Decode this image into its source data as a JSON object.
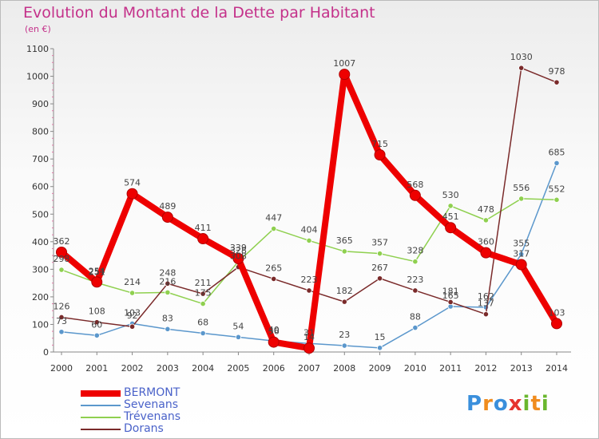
{
  "title": "Evolution du Montant de la Dette par Habitant",
  "subtitle": "(en €)",
  "logo": {
    "text": "Proxiti",
    "letter_colors": [
      "#3a8fdc",
      "#f08c1e",
      "#3a8fdc",
      "#e6342f",
      "#6ab72e",
      "#f08c1e",
      "#6ab72e"
    ]
  },
  "chart_data": {
    "type": "line",
    "title": "Evolution du Montant de la Dette par Habitant",
    "ylabel": "(en €)",
    "xlabel": "",
    "ylim": [
      0,
      1100
    ],
    "y_ticks": [
      0,
      100,
      200,
      300,
      400,
      500,
      600,
      700,
      800,
      900,
      1000,
      1100
    ],
    "grid": false,
    "legend_position": "bottom-left",
    "x": [
      "2000",
      "2001",
      "2002",
      "2003",
      "2004",
      "2005",
      "2006",
      "2007",
      "2008",
      "2009",
      "2010",
      "2011",
      "2012",
      "2013",
      "2014"
    ],
    "series": [
      {
        "name": "BERMONT",
        "color": "#ee0000",
        "values": [
          362,
          254,
          574,
          489,
          411,
          339,
          36,
          14,
          1007,
          715,
          568,
          451,
          360,
          317,
          103
        ]
      },
      {
        "name": "Sevenans",
        "color": "#5b97cc",
        "values": [
          73,
          60,
          103,
          83,
          68,
          54,
          40,
          31,
          23,
          15,
          88,
          165,
          162,
          355,
          685
        ]
      },
      {
        "name": "Trévenans",
        "color": "#8fd04f",
        "values": [
          298,
          251,
          214,
          216,
          175,
          328,
          447,
          404,
          365,
          357,
          328,
          530,
          478,
          556,
          552
        ]
      },
      {
        "name": "Dorans",
        "color": "#7a2a2a",
        "values": [
          126,
          108,
          92,
          248,
          211,
          308,
          265,
          223,
          182,
          267,
          223,
          181,
          137,
          1030,
          978
        ]
      }
    ]
  }
}
